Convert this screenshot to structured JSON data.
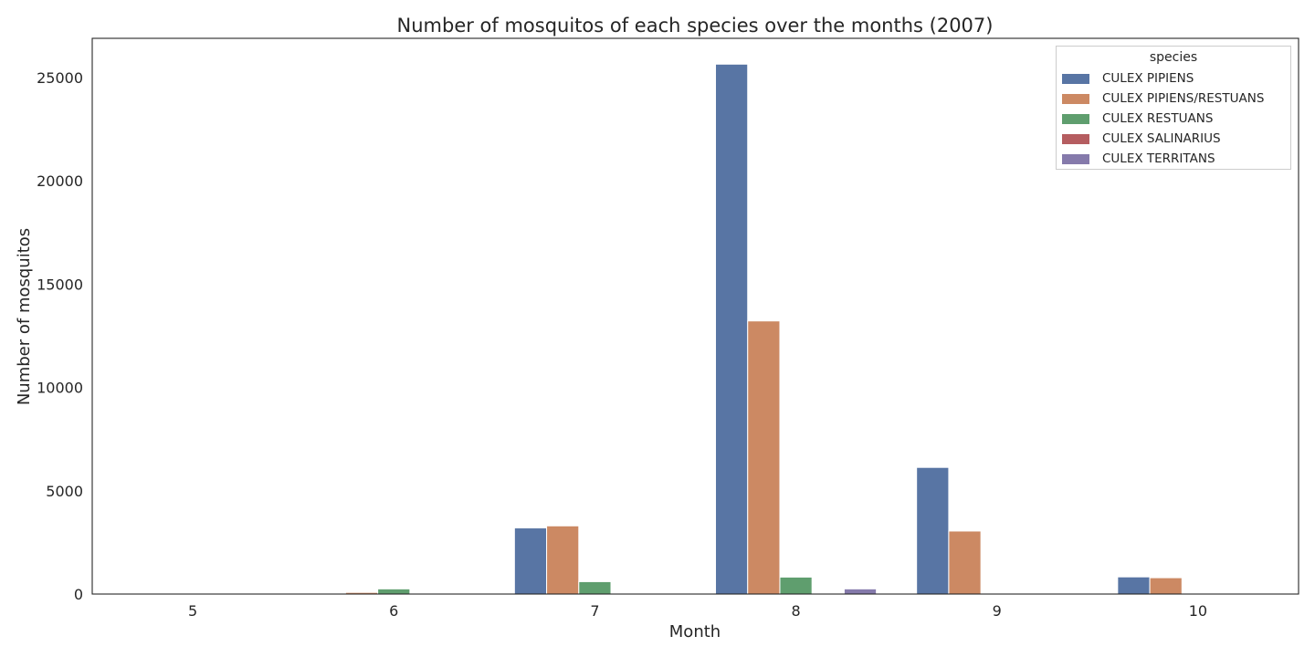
{
  "chart_data": {
    "type": "bar",
    "title": "Number of mosquitos of each species over the months (2007)",
    "xlabel": "Month",
    "ylabel": "Number of mosquitos",
    "categories": [
      "5",
      "6",
      "7",
      "8",
      "9",
      "10"
    ],
    "ylim": [
      0,
      26900
    ],
    "yticks": [
      0,
      5000,
      10000,
      15000,
      20000,
      25000
    ],
    "grid": false,
    "legend": {
      "title": "species",
      "placement": "top-right"
    },
    "series": [
      {
        "name": "CULEX PIPIENS",
        "color": "#5875a4",
        "values": [
          0,
          0,
          3200,
          25650,
          6130,
          830
        ]
      },
      {
        "name": "CULEX PIPIENS/RESTUANS",
        "color": "#cc8963",
        "values": [
          0,
          80,
          3300,
          13220,
          3050,
          790
        ]
      },
      {
        "name": "CULEX RESTUANS",
        "color": "#5f9e6e",
        "values": [
          0,
          250,
          600,
          820,
          0,
          0
        ]
      },
      {
        "name": "CULEX SALINARIUS",
        "color": "#b55d60",
        "values": [
          0,
          10,
          0,
          0,
          0,
          0
        ]
      },
      {
        "name": "CULEX TERRITANS",
        "color": "#857aab",
        "values": [
          0,
          0,
          0,
          250,
          0,
          0
        ]
      }
    ]
  }
}
